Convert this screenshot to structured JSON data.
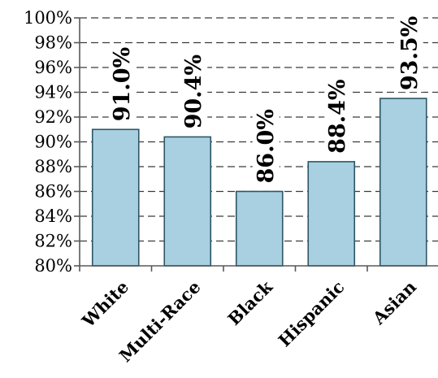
{
  "chart_data": {
    "type": "bar",
    "title": "",
    "xlabel": "",
    "ylabel": "",
    "categories": [
      "White",
      "Multi-Race",
      "Black",
      "Hispanic",
      "Asian"
    ],
    "values": [
      91.0,
      90.4,
      86.0,
      88.4,
      93.5
    ],
    "data_labels": [
      "91.0%",
      "90.4%",
      "86.0%",
      "88.4%",
      "93.5%"
    ],
    "ylim": [
      80,
      100
    ],
    "yticks": [
      80,
      82,
      84,
      86,
      88,
      90,
      92,
      94,
      96,
      98,
      100
    ],
    "ytick_labels": [
      "80%",
      "82%",
      "84%",
      "86%",
      "88%",
      "90%",
      "92%",
      "94%",
      "96%",
      "98%",
      "100%"
    ],
    "grid": "horizontal dashed",
    "legend": "none",
    "bar_fill": "#A9D0E0",
    "bar_stroke": "#2C5666",
    "axis_color": "#595959",
    "grid_color": "#3a3a3a"
  }
}
